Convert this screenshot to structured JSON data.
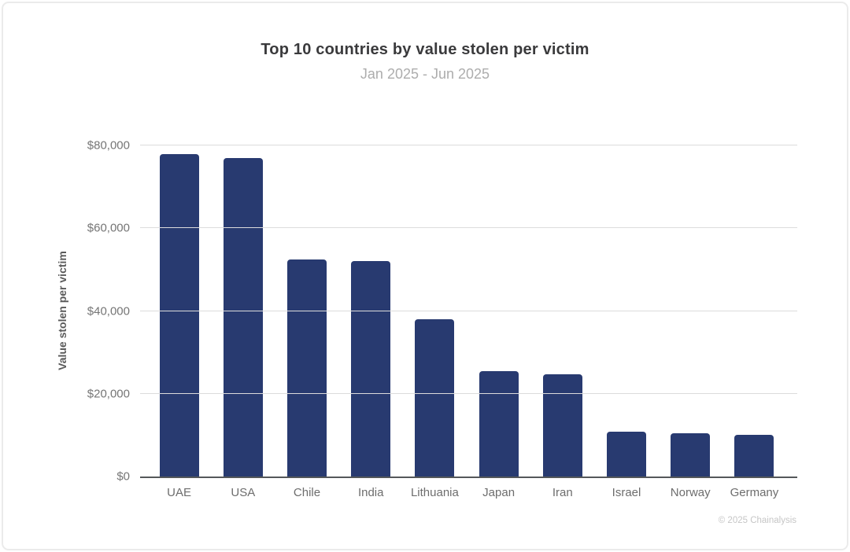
{
  "header": {
    "title": "Top 10 countries by value stolen per victim",
    "subtitle": "Jan 2025 - Jun 2025"
  },
  "chart_data": {
    "type": "bar",
    "title": "Top 10 countries by value stolen per victim",
    "subtitle": "Jan 2025 - Jun 2025",
    "categories": [
      "UAE",
      "USA",
      "Chile",
      "India",
      "Lithuania",
      "Japan",
      "Iran",
      "Israel",
      "Norway",
      "Germany"
    ],
    "values": [
      78000,
      77000,
      52500,
      52000,
      38000,
      25500,
      24700,
      10800,
      10400,
      10000
    ],
    "xlabel": "",
    "ylabel": "Value stolen per victim",
    "ylim": [
      0,
      80000
    ],
    "yticks": [
      0,
      20000,
      40000,
      60000,
      80000
    ],
    "ytick_labels": [
      "$0",
      "$20,000",
      "$40,000",
      "$60,000",
      "$80,000"
    ],
    "grid": true,
    "legend": false,
    "bar_color": "#283a70"
  },
  "footer": {
    "copyright": "© 2025 Chainalysis"
  }
}
